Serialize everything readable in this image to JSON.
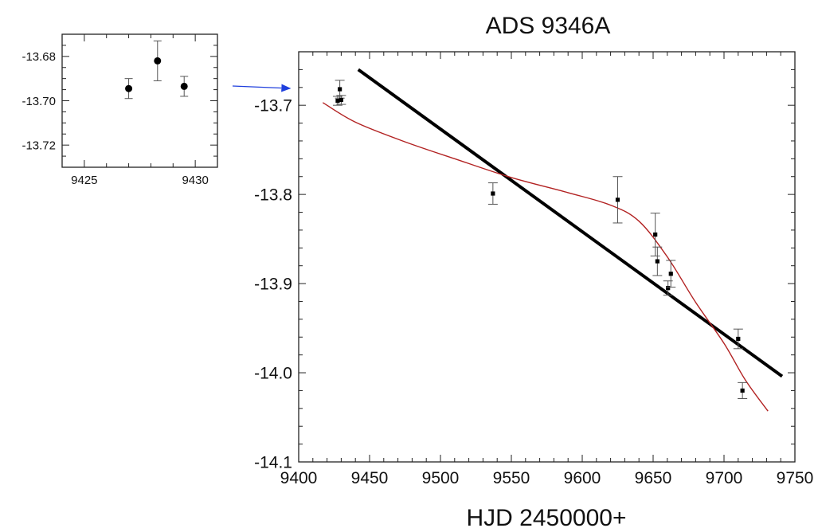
{
  "chart_data": [
    {
      "type": "scatter",
      "role": "inset",
      "title": "",
      "xlabel": "",
      "ylabel": "",
      "xlim": [
        9424.0,
        9431.0
      ],
      "ylim": [
        -13.73,
        -13.67
      ],
      "x_ticks": [
        9425,
        9430
      ],
      "x_tick_labels": [
        "9425",
        "9430"
      ],
      "y_ticks": [
        -13.68,
        -13.7,
        -13.72
      ],
      "y_tick_labels": [
        "-13.68",
        "-13.70",
        "-13.72"
      ],
      "grid": false,
      "series": [
        {
          "marker": "circle",
          "points": [
            {
              "x": 9427.0,
              "y": -13.6945,
              "err": 0.0045
            },
            {
              "x": 9428.3,
              "y": -13.682,
              "err": 0.009
            },
            {
              "x": 9429.5,
              "y": -13.6935,
              "err": 0.0045
            }
          ]
        }
      ],
      "colors": {
        "points": "#000000",
        "errorbars": "#444444"
      }
    },
    {
      "type": "scatter",
      "role": "main",
      "title": "ADS 9346A",
      "xlabel": "HJD 2450000+",
      "ylabel": "",
      "xlim": [
        9400,
        9750
      ],
      "ylim": [
        -14.1,
        -13.64
      ],
      "x_ticks": [
        9400,
        9450,
        9500,
        9550,
        9600,
        9650,
        9700,
        9750
      ],
      "x_tick_labels": [
        "9400",
        "9450",
        "9500",
        "9550",
        "9600",
        "9650",
        "9700",
        "9750"
      ],
      "y_ticks": [
        -13.7,
        -13.8,
        -13.9,
        -14.0,
        -14.1
      ],
      "y_tick_labels": [
        "-13.7",
        "-13.8",
        "-13.9",
        "-14.0",
        "-14.1"
      ],
      "grid": false,
      "series": [
        {
          "marker": "square",
          "points": [
            {
              "x": 9427.5,
              "y": -13.695,
              "err": 0.005
            },
            {
              "x": 9429.0,
              "y": -13.682,
              "err": 0.01
            },
            {
              "x": 9430.0,
              "y": -13.694,
              "err": 0.005
            },
            {
              "x": 9537.0,
              "y": -13.799,
              "err": 0.012
            },
            {
              "x": 9625.0,
              "y": -13.806,
              "err": 0.026
            },
            {
              "x": 9651.5,
              "y": -13.845,
              "err": 0.024
            },
            {
              "x": 9653.0,
              "y": -13.875,
              "err": 0.016
            },
            {
              "x": 9660.5,
              "y": -13.905,
              "err": 0.008
            },
            {
              "x": 9662.5,
              "y": -13.889,
              "err": 0.015
            },
            {
              "x": 9710.0,
              "y": -13.962,
              "err": 0.011
            },
            {
              "x": 9713.0,
              "y": -14.02,
              "err": 0.009
            }
          ]
        }
      ],
      "fits": [
        {
          "kind": "linear",
          "color": "#000000",
          "points": [
            {
              "x": 9442,
              "y": -13.66
            },
            {
              "x": 9741,
              "y": -14.004
            }
          ]
        },
        {
          "kind": "smooth",
          "color": "#b22222",
          "points": [
            {
              "x": 9417,
              "y": -13.697
            },
            {
              "x": 9440,
              "y": -13.719
            },
            {
              "x": 9475,
              "y": -13.741
            },
            {
              "x": 9510,
              "y": -13.76
            },
            {
              "x": 9550,
              "y": -13.781
            },
            {
              "x": 9590,
              "y": -13.798
            },
            {
              "x": 9620,
              "y": -13.812
            },
            {
              "x": 9640,
              "y": -13.83
            },
            {
              "x": 9660,
              "y": -13.87
            },
            {
              "x": 9680,
              "y": -13.921
            },
            {
              "x": 9700,
              "y": -13.967
            },
            {
              "x": 9715,
              "y": -14.008
            },
            {
              "x": 9731,
              "y": -14.043
            }
          ]
        }
      ],
      "arrow": {
        "color": "#1f3fdd",
        "from_panel": "inset",
        "to_point": {
          "x": 9428.5,
          "y": -13.69
        }
      }
    }
  ]
}
